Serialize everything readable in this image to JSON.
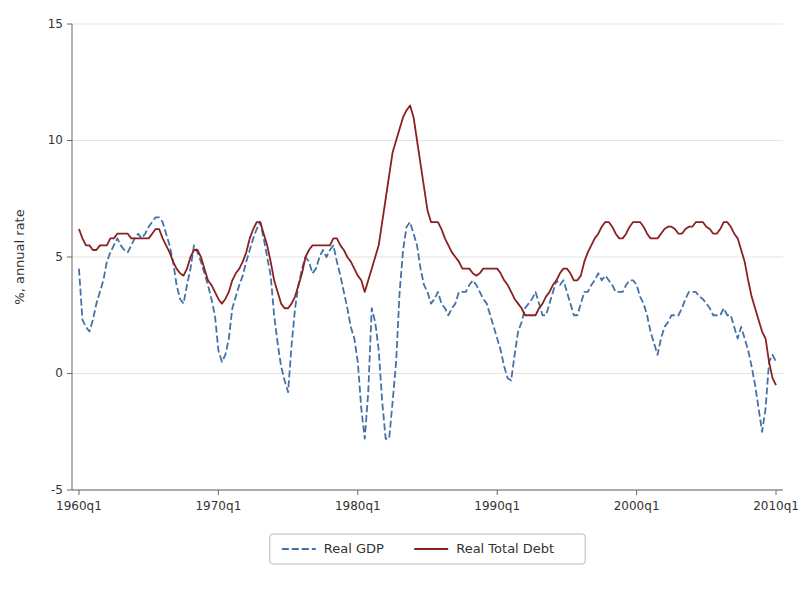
{
  "chart_data": {
    "type": "line",
    "ylabel": "%, annual rate",
    "xlim": [
      1959.5,
      2010.5
    ],
    "xticks": [
      {
        "value": 1960.0,
        "label": "1960q1"
      },
      {
        "value": 1970.0,
        "label": "1970q1"
      },
      {
        "value": 1980.0,
        "label": "1980q1"
      },
      {
        "value": 1990.0,
        "label": "1990q1"
      },
      {
        "value": 2000.0,
        "label": "2000q1"
      },
      {
        "value": 2010.0,
        "label": "2010q1"
      }
    ],
    "ylim": [
      -5,
      15
    ],
    "yticks": [
      -5,
      0,
      5,
      10,
      15
    ],
    "grid": true,
    "legend": "bottom",
    "x": [
      1960.0,
      1960.25,
      1960.5,
      1960.75,
      1961.0,
      1961.25,
      1961.5,
      1961.75,
      1962.0,
      1962.25,
      1962.5,
      1962.75,
      1963.0,
      1963.25,
      1963.5,
      1963.75,
      1964.0,
      1964.25,
      1964.5,
      1964.75,
      1965.0,
      1965.25,
      1965.5,
      1965.75,
      1966.0,
      1966.25,
      1966.5,
      1966.75,
      1967.0,
      1967.25,
      1967.5,
      1967.75,
      1968.0,
      1968.25,
      1968.5,
      1968.75,
      1969.0,
      1969.25,
      1969.5,
      1969.75,
      1970.0,
      1970.25,
      1970.5,
      1970.75,
      1971.0,
      1971.25,
      1971.5,
      1971.75,
      1972.0,
      1972.25,
      1972.5,
      1972.75,
      1973.0,
      1973.25,
      1973.5,
      1973.75,
      1974.0,
      1974.25,
      1974.5,
      1974.75,
      1975.0,
      1975.25,
      1975.5,
      1975.75,
      1976.0,
      1976.25,
      1976.5,
      1976.75,
      1977.0,
      1977.25,
      1977.5,
      1977.75,
      1978.0,
      1978.25,
      1978.5,
      1978.75,
      1979.0,
      1979.25,
      1979.5,
      1979.75,
      1980.0,
      1980.25,
      1980.5,
      1980.75,
      1981.0,
      1981.25,
      1981.5,
      1981.75,
      1982.0,
      1982.25,
      1982.5,
      1982.75,
      1983.0,
      1983.25,
      1983.5,
      1983.75,
      1984.0,
      1984.25,
      1984.5,
      1984.75,
      1985.0,
      1985.25,
      1985.5,
      1985.75,
      1986.0,
      1986.25,
      1986.5,
      1986.75,
      1987.0,
      1987.25,
      1987.5,
      1987.75,
      1988.0,
      1988.25,
      1988.5,
      1988.75,
      1989.0,
      1989.25,
      1989.5,
      1989.75,
      1990.0,
      1990.25,
      1990.5,
      1990.75,
      1991.0,
      1991.25,
      1991.5,
      1991.75,
      1992.0,
      1992.25,
      1992.5,
      1992.75,
      1993.0,
      1993.25,
      1993.5,
      1993.75,
      1994.0,
      1994.25,
      1994.5,
      1994.75,
      1995.0,
      1995.25,
      1995.5,
      1995.75,
      1996.0,
      1996.25,
      1996.5,
      1996.75,
      1997.0,
      1997.25,
      1997.5,
      1997.75,
      1998.0,
      1998.25,
      1998.5,
      1998.75,
      1999.0,
      1999.25,
      1999.5,
      1999.75,
      2000.0,
      2000.25,
      2000.5,
      2000.75,
      2001.0,
      2001.25,
      2001.5,
      2001.75,
      2002.0,
      2002.25,
      2002.5,
      2002.75,
      2003.0,
      2003.25,
      2003.5,
      2003.75,
      2004.0,
      2004.25,
      2004.5,
      2004.75,
      2005.0,
      2005.25,
      2005.5,
      2005.75,
      2006.0,
      2006.25,
      2006.5,
      2006.75,
      2007.0,
      2007.25,
      2007.5,
      2007.75,
      2008.0,
      2008.25,
      2008.5,
      2008.75,
      2009.0,
      2009.25,
      2009.5,
      2009.75,
      2010.0
    ],
    "series": [
      {
        "name": "Real GDP",
        "color": "#4472a8",
        "line_style": "dashed",
        "values": [
          4.5,
          2.3,
          2.0,
          1.8,
          2.3,
          3.0,
          3.5,
          4.0,
          4.8,
          5.2,
          5.5,
          5.8,
          5.5,
          5.3,
          5.2,
          5.5,
          5.8,
          6.0,
          5.8,
          6.0,
          6.3,
          6.5,
          6.7,
          6.7,
          6.5,
          6.0,
          5.5,
          4.8,
          3.8,
          3.2,
          3.0,
          3.8,
          4.5,
          5.5,
          5.2,
          4.8,
          4.3,
          3.8,
          3.2,
          2.5,
          1.0,
          0.5,
          0.8,
          1.5,
          2.8,
          3.3,
          3.8,
          4.2,
          4.8,
          5.3,
          5.8,
          6.2,
          6.5,
          5.8,
          5.0,
          4.2,
          2.5,
          1.3,
          0.3,
          -0.3,
          -0.8,
          1.2,
          2.8,
          3.8,
          4.5,
          5.0,
          4.8,
          4.3,
          4.5,
          5.0,
          5.3,
          5.0,
          5.3,
          5.5,
          4.8,
          4.2,
          3.5,
          2.8,
          2.0,
          1.5,
          0.5,
          -1.5,
          -2.8,
          -0.8,
          2.8,
          2.2,
          1.0,
          -1.2,
          -2.8,
          -2.8,
          -1.2,
          0.5,
          3.5,
          5.3,
          6.3,
          6.5,
          6.0,
          5.5,
          4.5,
          3.8,
          3.5,
          3.0,
          3.2,
          3.5,
          3.0,
          2.8,
          2.5,
          2.8,
          3.0,
          3.5,
          3.5,
          3.5,
          3.8,
          4.0,
          3.8,
          3.5,
          3.2,
          3.0,
          2.5,
          2.0,
          1.5,
          1.0,
          0.3,
          -0.2,
          -0.3,
          0.8,
          1.8,
          2.2,
          2.8,
          3.0,
          3.2,
          3.5,
          3.0,
          2.5,
          2.5,
          3.0,
          3.5,
          4.0,
          3.8,
          4.0,
          3.5,
          3.0,
          2.5,
          2.5,
          3.0,
          3.5,
          3.5,
          3.8,
          4.0,
          4.3,
          4.0,
          4.2,
          4.0,
          3.8,
          3.5,
          3.5,
          3.5,
          3.8,
          4.0,
          4.0,
          3.8,
          3.3,
          3.0,
          2.5,
          1.8,
          1.3,
          0.8,
          1.5,
          2.0,
          2.2,
          2.5,
          2.5,
          2.5,
          2.8,
          3.2,
          3.5,
          3.5,
          3.5,
          3.3,
          3.2,
          3.0,
          2.8,
          2.5,
          2.5,
          2.5,
          2.8,
          2.5,
          2.5,
          2.0,
          1.5,
          2.0,
          1.5,
          1.0,
          0.3,
          -0.5,
          -1.5,
          -2.5,
          -1.5,
          0.5,
          0.8,
          0.5
        ]
      },
      {
        "name": "Real Total Debt",
        "color": "#8b2020",
        "line_style": "solid",
        "values": [
          6.2,
          5.8,
          5.5,
          5.5,
          5.3,
          5.3,
          5.5,
          5.5,
          5.5,
          5.8,
          5.8,
          6.0,
          6.0,
          6.0,
          6.0,
          5.8,
          5.8,
          5.8,
          5.8,
          5.8,
          5.8,
          6.0,
          6.2,
          6.2,
          5.8,
          5.5,
          5.2,
          4.8,
          4.5,
          4.3,
          4.2,
          4.5,
          5.0,
          5.3,
          5.3,
          5.0,
          4.5,
          4.0,
          3.8,
          3.5,
          3.2,
          3.0,
          3.2,
          3.5,
          4.0,
          4.3,
          4.5,
          4.8,
          5.2,
          5.8,
          6.2,
          6.5,
          6.5,
          6.0,
          5.5,
          4.8,
          4.0,
          3.5,
          3.0,
          2.8,
          2.8,
          3.0,
          3.3,
          3.8,
          4.3,
          5.0,
          5.3,
          5.5,
          5.5,
          5.5,
          5.5,
          5.5,
          5.5,
          5.8,
          5.8,
          5.5,
          5.3,
          5.0,
          4.8,
          4.5,
          4.2,
          4.0,
          3.5,
          4.0,
          4.5,
          5.0,
          5.5,
          6.5,
          7.5,
          8.5,
          9.5,
          10.0,
          10.5,
          11.0,
          11.3,
          11.5,
          11.0,
          10.0,
          9.0,
          8.0,
          7.0,
          6.5,
          6.5,
          6.5,
          6.2,
          5.8,
          5.5,
          5.2,
          5.0,
          4.8,
          4.5,
          4.5,
          4.5,
          4.3,
          4.2,
          4.3,
          4.5,
          4.5,
          4.5,
          4.5,
          4.5,
          4.3,
          4.0,
          3.8,
          3.5,
          3.2,
          3.0,
          2.8,
          2.5,
          2.5,
          2.5,
          2.5,
          2.8,
          3.0,
          3.3,
          3.5,
          3.8,
          4.0,
          4.3,
          4.5,
          4.5,
          4.3,
          4.0,
          4.0,
          4.2,
          4.8,
          5.2,
          5.5,
          5.8,
          6.0,
          6.3,
          6.5,
          6.5,
          6.3,
          6.0,
          5.8,
          5.8,
          6.0,
          6.3,
          6.5,
          6.5,
          6.5,
          6.3,
          6.0,
          5.8,
          5.8,
          5.8,
          6.0,
          6.2,
          6.3,
          6.3,
          6.2,
          6.0,
          6.0,
          6.2,
          6.3,
          6.3,
          6.5,
          6.5,
          6.5,
          6.3,
          6.2,
          6.0,
          6.0,
          6.2,
          6.5,
          6.5,
          6.3,
          6.0,
          5.8,
          5.3,
          4.8,
          4.0,
          3.3,
          2.8,
          2.3,
          1.8,
          1.5,
          0.5,
          -0.2,
          -0.5
        ]
      }
    ]
  }
}
